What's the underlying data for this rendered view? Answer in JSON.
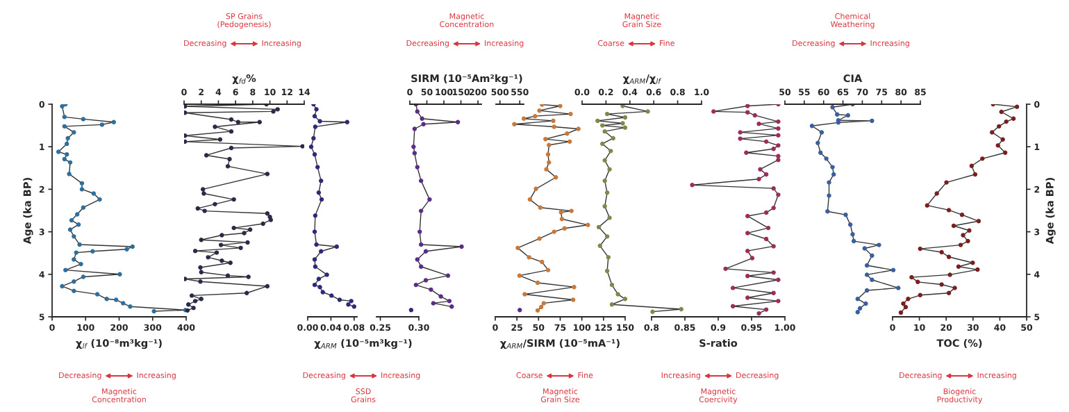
{
  "chart_data": [
    {
      "type": "line",
      "xlabel": "χ$_{lf}$ (10⁻⁸m³kg⁻¹)",
      "xlim": [
        0,
        400
      ],
      "xticks": [
        0,
        100,
        200,
        300,
        400
      ],
      "ylabel": "Age (ka BP)",
      "ylim": [
        5,
        0
      ],
      "yticks": [
        0,
        1,
        2,
        3,
        4,
        5
      ],
      "marker": "circle",
      "line_style": "solid",
      "annotations": [
        "Decreasing",
        "Increasing",
        "Magnetic\nConcentration"
      ],
      "series": [
        {
          "color": "#2e6f9e",
          "values": [
            0.0,
            0.05,
            0.3,
            0.35,
            0.42,
            0.48,
            0.52,
            0.66,
            0.8,
            0.93,
            1.12,
            1.18,
            1.29,
            1.37,
            1.64,
            1.86,
            2.0,
            2.1,
            2.24,
            2.43,
            2.59,
            2.73,
            2.83,
            2.95,
            3.11,
            3.3,
            3.35,
            3.41,
            3.46,
            3.49,
            3.65,
            3.76,
            3.9,
            4.0,
            4.06,
            4.17,
            4.28,
            4.39,
            4.47,
            4.58,
            4.6,
            4.68,
            4.76,
            4.84,
            4.87
          ],
          "x": [
            40,
            30,
            37,
            93,
            184,
            149,
            37,
            65,
            47,
            44,
            19,
            44,
            37,
            54,
            51,
            89,
            89,
            124,
            142,
            93,
            75,
            58,
            79,
            54,
            65,
            82,
            240,
            223,
            121,
            72,
            65,
            86,
            40,
            202,
            93,
            65,
            30,
            65,
            135,
            163,
            191,
            212,
            233,
            398,
            304
          ]
        }
      ]
    },
    {
      "type": "line",
      "xlabel": "χ$_{fd}$%",
      "xlim": [
        0,
        14
      ],
      "xticks": [
        0,
        2,
        4,
        6,
        8,
        10,
        12,
        14
      ],
      "ylim": [
        5,
        0
      ],
      "tick_labels": "x",
      "marker": "circle",
      "line_style": "solid",
      "annotations": [
        "Decreasing",
        "Increasing",
        "SP Grains\n(Pedogenesis)"
      ],
      "series": [
        {
          "color": "#2a2a4a",
          "values": [
            0.0,
            0.05,
            0.12,
            0.17,
            0.2,
            0.36,
            0.42,
            0.42,
            0.53,
            0.64,
            0.74,
            0.83,
            0.88,
            0.99,
            1.03,
            1.2,
            1.29,
            1.46,
            1.64,
            2.0,
            2.1,
            2.24,
            2.35,
            2.45,
            2.51,
            2.57,
            2.65,
            2.72,
            2.81,
            2.91,
            2.95,
            3.03,
            3.08,
            3.19,
            3.25,
            3.31,
            3.38,
            3.45,
            3.49,
            3.6,
            3.68,
            3.73,
            3.84,
            3.95,
            4.03,
            4.06,
            4.11,
            4.17,
            4.28,
            4.44,
            4.5,
            4.58,
            4.63,
            4.71,
            4.79,
            4.85
          ],
          "x": [
            9.6,
            0.1,
            10.9,
            10.4,
            0.1,
            5.5,
            6.3,
            8.8,
            3.6,
            5.5,
            0.1,
            4.2,
            0.1,
            13.8,
            5.5,
            2.6,
            5.3,
            5.1,
            9.7,
            2.2,
            2.3,
            5.8,
            3.6,
            1.6,
            2.4,
            9.7,
            10.0,
            10.1,
            9.2,
            5.8,
            7.7,
            7.0,
            4.4,
            2.0,
            7.4,
            4.3,
            6.6,
            1.3,
            3.8,
            2.8,
            4.4,
            5.4,
            1.9,
            2.0,
            5.1,
            7.5,
            0.1,
            1.9,
            9.7,
            7.3,
            0.9,
            2.0,
            1.3,
            0.5,
            1.1,
            0.4
          ]
        }
      ]
    },
    {
      "type": "line",
      "xlabel": "χ$_{ARM}$ (10⁻⁵m³kg⁻¹)",
      "xlim": [
        0,
        0.085
      ],
      "xticks": [
        {
          "value": 0,
          "label": "0.00"
        },
        0.04,
        0.08
      ],
      "ylim": [
        5,
        0
      ],
      "tick_labels": "x",
      "marker": "circle",
      "line_style": "solid",
      "annotations": [
        "Decreasing",
        "Increasing",
        "SSD\nGrains"
      ],
      "series": [
        {
          "color": "#2e2a7a",
          "values": [
            0.0,
            0.12,
            0.28,
            0.4,
            0.42,
            0.53,
            0.8,
            1.0,
            1.18,
            1.48,
            1.8,
            2.08,
            2.24,
            2.62,
            3.0,
            3.3,
            3.35,
            3.46,
            3.65,
            3.82,
            4.01,
            4.11,
            4.25,
            4.3,
            4.42,
            4.5,
            4.6,
            4.63,
            4.71,
            4.76
          ],
          "x": [
            0.01,
            0.015,
            0.012,
            0.021,
            0.068,
            0.013,
            0.01,
            0.006,
            0.012,
            0.017,
            0.023,
            0.019,
            0.024,
            0.013,
            0.012,
            0.015,
            0.05,
            0.023,
            0.012,
            0.013,
            0.033,
            0.019,
            0.012,
            0.021,
            0.026,
            0.041,
            0.055,
            0.075,
            0.07,
            0.08
          ]
        }
      ]
    },
    {
      "type": "line",
      "xlim": [
        0.245,
        0.3
      ],
      "xticks": [
        0.25,
        {
          "value": 0.3,
          "label": "0.30"
        }
      ],
      "ylim": [
        5,
        0
      ],
      "tick_labels": "x",
      "marker": "circle",
      "line_style": "solid",
      "series": [
        {
          "color": "#2e2a7a",
          "values": [
            4.84
          ],
          "x": [
            0.29
          ]
        }
      ]
    },
    {
      "type": "line",
      "xlabel": "SIRM (10⁻⁵Am²kg⁻¹)",
      "xlim": [
        0,
        210
      ],
      "xticks": [
        0,
        50,
        100,
        150,
        200
      ],
      "ylim": [
        5,
        0
      ],
      "tick_labels": "x",
      "marker": "circle",
      "line_style": "solid",
      "annotations": [
        "Decreasing",
        "Increasing",
        "Magnetic\nConcentration"
      ],
      "series": [
        {
          "color": "#5b2d8a",
          "values": [
            0.0,
            0.17,
            0.34,
            0.42,
            0.47,
            0.58,
            1.0,
            1.15,
            1.48,
            1.8,
            2.24,
            2.51,
            3.0,
            3.3,
            3.35,
            3.46,
            3.65,
            3.82,
            4.03,
            4.14,
            4.25,
            4.36,
            4.52,
            4.63,
            4.68,
            4.76
          ],
          "x": [
            18,
            22,
            36,
            141,
            40,
            14,
            11,
            14,
            22,
            33,
            58,
            33,
            29,
            33,
            152,
            47,
            22,
            33,
            112,
            47,
            18,
            62,
            91,
            116,
            69,
            123
          ]
        }
      ]
    },
    {
      "type": "line",
      "xlim": [
        490,
        560
      ],
      "xticks": [
        500,
        550
      ],
      "ylim": [
        5,
        0
      ],
      "tick_labels": "x",
      "marker": "circle",
      "line_style": "solid",
      "series": [
        {
          "color": "#5b2d8a",
          "values": [
            4.84
          ],
          "x": [
            550
          ]
        }
      ]
    },
    {
      "type": "line",
      "xlabel": "χ$_{ARM}$/SIRM (10⁻⁵mA⁻¹)",
      "xlim": [
        0,
        150
      ],
      "xticks": [
        0,
        25,
        50,
        75,
        100,
        125,
        150
      ],
      "ylim": [
        5,
        0
      ],
      "tick_labels": "x",
      "marker": "circle",
      "line_style": "solid",
      "annotations": [
        "Coarse",
        "Fine",
        "Magnetic\nGrain Size"
      ],
      "series": [
        {
          "color": "#c8793a",
          "values": [
            0.01,
            0.04,
            0.15,
            0.23,
            0.28,
            0.34,
            0.39,
            0.47,
            0.53,
            0.58,
            0.69,
            0.82,
            0.88,
            0.96,
            1.18,
            1.37,
            1.53,
            1.72,
            1.99,
            2.24,
            2.43,
            2.51,
            2.54,
            2.7,
            2.84,
            2.92,
            3.0,
            3.16,
            3.38,
            3.6,
            3.71,
            3.9,
            4.03,
            4.2,
            4.3,
            4.47,
            4.6,
            4.68,
            4.77,
            4.85
          ],
          "x": [
            54,
            75,
            51,
            87,
            46,
            33,
            67,
            22,
            68,
            96,
            83,
            58,
            86,
            62,
            61,
            62,
            59,
            70,
            47,
            40,
            52,
            88,
            76,
            77,
            107,
            80,
            68,
            51,
            26,
            39,
            54,
            61,
            28,
            49,
            91,
            34,
            90,
            56,
            53,
            49
          ]
        }
      ]
    },
    {
      "type": "line",
      "xlabel": "χ$_{ARM}$/χ$_{lf}$",
      "xlim": [
        0,
        1
      ],
      "xticks": [
        {
          "value": 0,
          "label": "0.0"
        },
        0.2,
        0.4,
        0.6,
        0.8,
        {
          "value": 1,
          "label": "1.0"
        }
      ],
      "ylim": [
        5,
        0
      ],
      "tick_labels": "x",
      "marker": "circle",
      "line_style": "solid",
      "annotations": [
        "Coarse",
        "Fine",
        "Magnetic\nGrain Size"
      ],
      "series": [
        {
          "color": "#7c8a4c",
          "values": [
            0.04,
            0.17,
            0.23,
            0.31,
            0.39,
            0.45,
            0.5,
            0.55,
            0.64,
            0.8,
            0.93,
            1.1,
            1.32,
            1.53,
            1.8,
            2.08,
            2.4,
            2.67,
            2.89,
            3.11,
            3.33,
            3.6,
            3.92,
            4.25,
            4.47,
            4.58,
            4.71,
            4.82,
            4.88
          ],
          "x": [
            0.34,
            0.55,
            0.21,
            0.36,
            0.13,
            0.34,
            0.17,
            0.36,
            0.19,
            0.26,
            0.17,
            0.24,
            0.19,
            0.23,
            0.19,
            0.21,
            0.19,
            0.23,
            0.14,
            0.21,
            0.15,
            0.22,
            0.21,
            0.25,
            0.3,
            0.36,
            0.25,
            0.83,
            0.59
          ]
        }
      ]
    },
    {
      "type": "line",
      "xlabel": "S-ratio",
      "xlim": [
        0.8,
        1
      ],
      "xticks": [
        0.8,
        0.85,
        0.9,
        0.95,
        {
          "value": 1,
          "label": "1.00"
        }
      ],
      "ylim": [
        5,
        0
      ],
      "tick_labels": "x",
      "marker": "circle",
      "line_style": "solid",
      "annotations": [
        "Increasing",
        "Decreasing",
        "Magnetic\nCoercivity"
      ],
      "series": [
        {
          "color": "#9b2d5c",
          "values": [
            0.0,
            0.04,
            0.17,
            0.19,
            0.26,
            0.41,
            0.46,
            0.57,
            0.66,
            0.73,
            0.81,
            0.88,
            0.97,
            1.05,
            1.14,
            1.22,
            1.31,
            1.53,
            1.65,
            1.76,
            1.9,
            1.98,
            2.13,
            2.44,
            2.55,
            2.63,
            2.91,
            3.03,
            3.17,
            3.34,
            3.45,
            3.62,
            3.87,
            3.96,
            4.04,
            4.13,
            4.32,
            4.44,
            4.55,
            4.63,
            4.75,
            4.83,
            4.92
          ],
          "x": [
            0.99,
            0.944,
            0.893,
            0.944,
            0.955,
            0.99,
            0.961,
            0.99,
            0.933,
            0.99,
            0.933,
            0.972,
            0.99,
            0.983,
            0.942,
            0.99,
            0.99,
            0.963,
            0.972,
            0.961,
            0.861,
            0.983,
            0.99,
            0.983,
            0.972,
            0.944,
            0.975,
            0.944,
            0.972,
            0.983,
            0.944,
            0.951,
            0.911,
            0.983,
            0.944,
            0.99,
            0.922,
            0.983,
            0.944,
            0.99,
            0.922,
            0.972,
            0.961
          ]
        }
      ]
    },
    {
      "type": "line",
      "xlabel": "CIA",
      "xlim": [
        50,
        85
      ],
      "xticks": [
        50,
        55,
        60,
        65,
        70,
        75,
        80,
        85
      ],
      "ylim": [
        5,
        0
      ],
      "tick_labels": "x",
      "marker": "circle",
      "line_style": "solid",
      "annotations": [
        "Decreasing",
        "Increasing",
        "Chemical\nWeathering"
      ],
      "series": [
        {
          "color": "#3a5f9e",
          "values": [
            0.0,
            0.07,
            0.24,
            0.26,
            0.38,
            0.39,
            0.43,
            0.51,
            0.66,
            0.91,
            1.14,
            1.28,
            1.48,
            1.65,
            1.84,
            2.15,
            2.52,
            2.6,
            2.83,
            3.06,
            3.22,
            3.31,
            3.39,
            3.56,
            3.79,
            3.9,
            4.01,
            4.13,
            4.32,
            4.38,
            4.58,
            4.69,
            4.8,
            4.89
          ],
          "x": [
            67.5,
            62.3,
            63.5,
            66.3,
            63.8,
            72.5,
            63.8,
            57.0,
            59.5,
            58.5,
            59.2,
            60.7,
            62.3,
            62.6,
            61.4,
            61.4,
            61.0,
            65.7,
            66.9,
            67.5,
            67.8,
            74.3,
            70.6,
            72.5,
            71.2,
            78.0,
            71.2,
            72.5,
            79.3,
            71.2,
            68.8,
            70.9,
            69.4,
            68.8
          ]
        }
      ]
    },
    {
      "type": "line",
      "xlabel": "TOC (%)",
      "xlim": [
        0,
        50
      ],
      "xticks": [
        0,
        10,
        20,
        30,
        40,
        50
      ],
      "y2label": "Age (ka BP)",
      "y2lim": [
        5,
        0
      ],
      "y2ticks": [
        0,
        1,
        2,
        3,
        4,
        5
      ],
      "marker": "circle",
      "line_style": "solid",
      "annotations": [
        "Decreasing",
        "Increasing",
        "Biogenic\nProductivity"
      ],
      "series": [
        {
          "color": "#7a1f1f",
          "axis": "y2",
          "values": [
            0.0,
            0.06,
            0.18,
            0.34,
            0.41,
            0.52,
            0.66,
            0.83,
            0.97,
            1.14,
            1.28,
            1.45,
            1.65,
            1.84,
            2.1,
            2.38,
            2.49,
            2.6,
            2.75,
            2.86,
            2.97,
            3.08,
            3.22,
            3.31,
            3.4,
            3.48,
            3.59,
            3.73,
            3.82,
            3.89,
            4.01,
            4.07,
            4.18,
            4.24,
            4.32,
            4.44,
            4.49,
            4.58,
            4.69,
            4.77,
            4.9
          ],
          "x": [
            37.5,
            46.4,
            40.6,
            45.1,
            42.4,
            39.7,
            37.1,
            41.1,
            39.3,
            42.0,
            33.5,
            29.5,
            30.8,
            20.1,
            16.5,
            12.9,
            21.0,
            25.9,
            32.1,
            22.8,
            28.6,
            26.3,
            28.1,
            25.4,
            10.3,
            18.3,
            21.0,
            29.9,
            24.6,
            31.7,
            21.4,
            7.1,
            9.4,
            18.3,
            23.2,
            21.0,
            10.3,
            5.8,
            4.0,
            4.9,
            3.1
          ]
        }
      ]
    }
  ]
}
